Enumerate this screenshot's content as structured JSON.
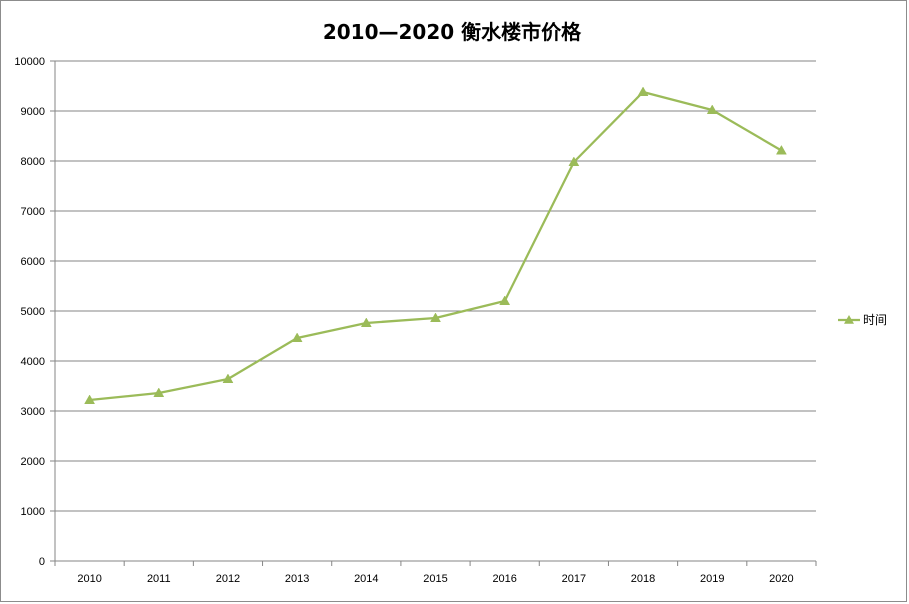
{
  "chart_data": {
    "type": "line",
    "title": "2010—2020 衡水楼市价格",
    "xlabel": "",
    "ylabel": "",
    "categories": [
      "2010",
      "2011",
      "2012",
      "2013",
      "2014",
      "2015",
      "2016",
      "2017",
      "2018",
      "2019",
      "2020"
    ],
    "series": [
      {
        "name": "时间",
        "color": "#9bbb59",
        "marker": "triangle",
        "values": [
          3220,
          3360,
          3640,
          4460,
          4760,
          4860,
          5200,
          7980,
          9380,
          9020,
          8210
        ]
      }
    ],
    "ylim": [
      0,
      10000
    ],
    "yticks": [
      "0",
      "1000",
      "2000",
      "3000",
      "4000",
      "5000",
      "6000",
      "7000",
      "8000",
      "9000",
      "10000"
    ],
    "grid": true,
    "legend_position": "right"
  }
}
